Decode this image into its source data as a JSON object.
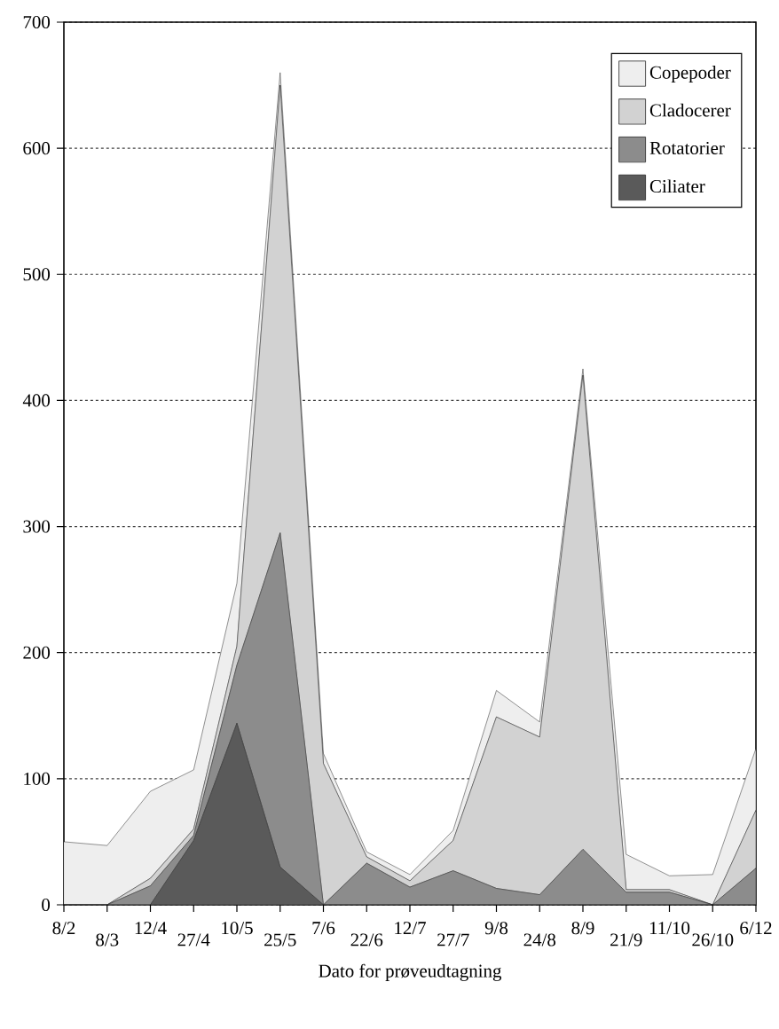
{
  "chart_data": {
    "type": "area",
    "stacked": true,
    "xlabel": "Dato for prøveudtagning",
    "categories": [
      "8/2",
      "8/3",
      "12/4",
      "27/4",
      "10/5",
      "25/5",
      "7/6",
      "22/6",
      "12/7",
      "27/7",
      "9/8",
      "24/8",
      "8/9",
      "21/9",
      "11/10",
      "26/10",
      "6/12"
    ],
    "series": [
      {
        "name": "Ciliater",
        "color": "#5a5a5a",
        "values": [
          0,
          0,
          0,
          51,
          144,
          30,
          0,
          0,
          0,
          0,
          0,
          0,
          0,
          0,
          0,
          0,
          0
        ]
      },
      {
        "name": "Rotatorier",
        "color": "#8c8c8c",
        "values": [
          0,
          0,
          15,
          4,
          46,
          265,
          0,
          33,
          14,
          27,
          13,
          8,
          44,
          10,
          10,
          0,
          29
        ]
      },
      {
        "name": "Cladocerer",
        "color": "#d2d2d2",
        "values": [
          0,
          0,
          6,
          5,
          15,
          355,
          112,
          5,
          5,
          24,
          136,
          125,
          376,
          2,
          2,
          0,
          46
        ]
      },
      {
        "name": "Copepoder",
        "color": "#eeeeee",
        "values": [
          50,
          47,
          69,
          47,
          50,
          10,
          8,
          4,
          5,
          8,
          21,
          12,
          5,
          28,
          11,
          24,
          49
        ]
      }
    ],
    "ylim": [
      0,
      700
    ],
    "yticks": [
      0,
      100,
      200,
      300,
      400,
      500,
      600,
      700
    ],
    "grid": "y",
    "legend": "top right"
  }
}
